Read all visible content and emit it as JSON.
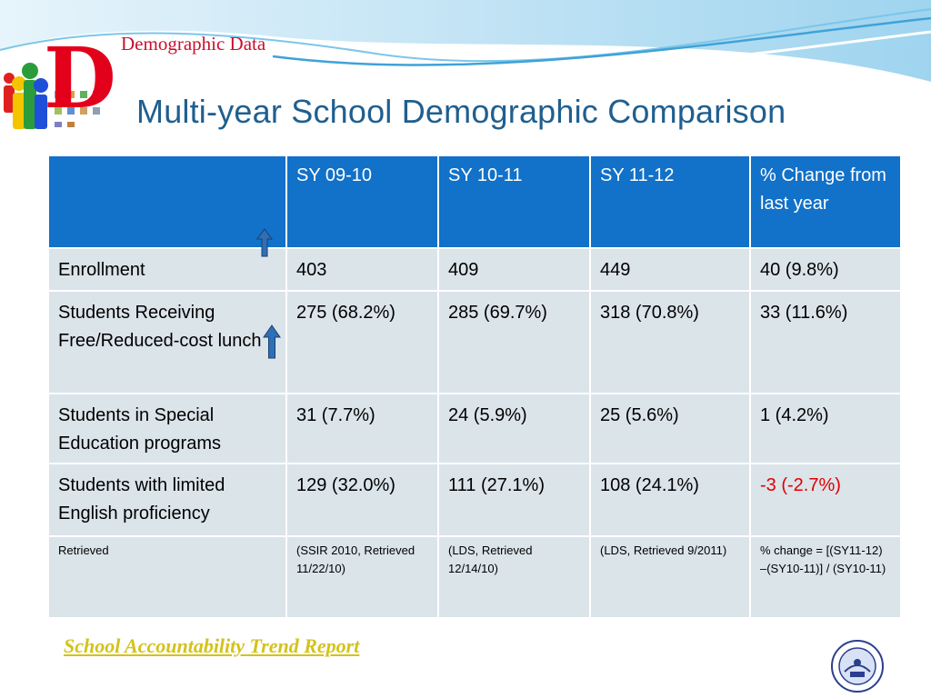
{
  "header": {
    "logo_letter": "D",
    "logo_label": "Demographic Data",
    "title": "Multi-year School Demographic Comparison"
  },
  "table": {
    "columns": [
      "",
      "SY 09-10",
      "SY 10-11",
      "SY 11-12",
      "% Change from last year"
    ],
    "rows": [
      {
        "label": "Enrollment",
        "values": [
          "403",
          "409",
          "449",
          "40  (9.8%)"
        ],
        "indicator": "up-arrow"
      },
      {
        "label": "Students Receiving Free/Reduced-cost lunch",
        "values": [
          "275 (68.2%)",
          "285 (69.7%)",
          "318 (70.8%)",
          "33 (11.6%)"
        ],
        "indicator": "up-arrow"
      },
      {
        "label": "Students in Special Education programs",
        "values": [
          "31 (7.7%)",
          "24 (5.9%)",
          "25 (5.6%)",
          "1 (4.2%)"
        ]
      },
      {
        "label": "Students with limited English proficiency",
        "values": [
          "129 (32.0%)",
          "111 (27.1%)",
          "108 (24.1%)",
          "-3 (-2.7%)"
        ],
        "highlight_color": "#e00000"
      },
      {
        "label": "Retrieved",
        "values": [
          "(SSIR 2010, Retrieved 11/22/10)",
          "(LDS, Retrieved 12/14/10)",
          "(LDS, Retrieved 9/2011)",
          "% change = [(SY11-12) –(SY10-11)] / (SY10-11)"
        ]
      }
    ]
  },
  "footer": {
    "link_text": "School Accountability Trend Report",
    "seal_icon": "department-of-education-seal-icon"
  },
  "colors": {
    "header_blue": "#1271c8",
    "cell_gray": "#dbe4e9",
    "title_blue": "#1f5f8f",
    "logo_red": "#e3001b",
    "link_gold": "#d4c21a"
  }
}
